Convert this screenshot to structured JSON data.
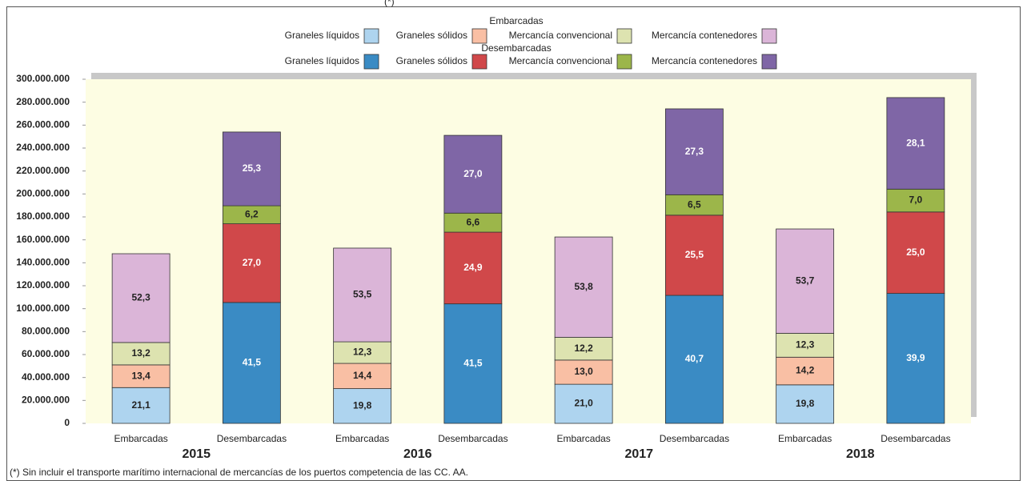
{
  "chart_data": {
    "type": "stacked_bar",
    "title": "(*)",
    "footnote": "(*) Sin incluir el transporte marítimo internacional de mercancías de los puertos competencia de las CC. AA.",
    "legend_titles": [
      "Embarcadas",
      "Desembarcadas"
    ],
    "categories": [
      "Embarcadas",
      "Desembarcadas",
      "Embarcadas",
      "Desembarcadas",
      "Embarcadas",
      "Desembarcadas",
      "Embarcadas",
      "Desembarcadas"
    ],
    "groups": [
      "2015",
      "2016",
      "2017",
      "2018"
    ],
    "series": [
      {
        "name": "Graneles líquidos",
        "color": "#aed4ef",
        "values": [
          31200000,
          null,
          30300000,
          null,
          34100000,
          null,
          33600000,
          null
        ],
        "share_labels": [
          "21,1",
          null,
          "19,8",
          null,
          "21,0",
          null,
          "19,8",
          null
        ]
      },
      {
        "name": "Graneles sólidos",
        "color": "#f9bfa4",
        "values": [
          19800000,
          null,
          22000000,
          null,
          21100000,
          null,
          24100000,
          null
        ],
        "share_labels": [
          "13,4",
          null,
          "14,4",
          null,
          "13,0",
          null,
          "14,2",
          null
        ]
      },
      {
        "name": "Mercancía convencional",
        "color": "#dde3b0",
        "values": [
          19500000,
          null,
          18800000,
          null,
          19800000,
          null,
          20800000,
          null
        ],
        "share_labels": [
          "13,2",
          null,
          "12,3",
          null,
          "12,2",
          null,
          "12,3",
          null
        ]
      },
      {
        "name": "Mercancía contenedores",
        "color": "#dbb5d8",
        "values": [
          77400000,
          null,
          81700000,
          null,
          87500000,
          null,
          91000000,
          null
        ],
        "share_labels": [
          "52,3",
          null,
          "53,5",
          null,
          "53,8",
          null,
          "53,7",
          null
        ]
      },
      {
        "name": "Graneles líquidos",
        "color": "#3a8bc4",
        "values": [
          null,
          105400000,
          null,
          104200000,
          null,
          111600000,
          null,
          113300000
        ],
        "share_labels": [
          null,
          "41,5",
          null,
          "41,5",
          null,
          "40,7",
          null,
          "39,9"
        ]
      },
      {
        "name": "Graneles sólidos",
        "color": "#d0484a",
        "values": [
          null,
          68600000,
          null,
          62500000,
          null,
          69900000,
          null,
          71000000
        ],
        "share_labels": [
          null,
          "27,0",
          null,
          "24,9",
          null,
          "25,5",
          null,
          "25,0"
        ]
      },
      {
        "name": "Mercancía convencional",
        "color": "#9cb64a",
        "values": [
          null,
          15700000,
          null,
          16600000,
          null,
          17800000,
          null,
          19900000
        ],
        "share_labels": [
          null,
          "6,2",
          null,
          "6,6",
          null,
          "6,5",
          null,
          "7,0"
        ]
      },
      {
        "name": "Mercancía contenedores",
        "color": "#7f66a6",
        "values": [
          null,
          64300000,
          null,
          67800000,
          null,
          74900000,
          null,
          79800000
        ],
        "share_labels": [
          null,
          "25,3",
          null,
          "27,0",
          null,
          "27,3",
          null,
          "28,1"
        ]
      }
    ],
    "ylim": [
      0,
      300000000
    ],
    "yticks": [
      0,
      {
        "value": 20000000,
        "label": "20.000.000"
      },
      {
        "value": 40000000,
        "label": "40.000.000"
      },
      {
        "value": 60000000,
        "label": "60.000.000"
      },
      {
        "value": 80000000,
        "label": "80.000.000"
      },
      {
        "value": 100000000,
        "label": "100.000.000"
      },
      {
        "value": 120000000,
        "label": "120.000.000"
      },
      {
        "value": 140000000,
        "label": "140.000.000"
      },
      {
        "value": 160000000,
        "label": "160.000.000"
      },
      {
        "value": 180000000,
        "label": "180.000.000"
      },
      {
        "value": 200000000,
        "label": "200.000.000"
      },
      {
        "value": 220000000,
        "label": "220.000.000"
      },
      {
        "value": 240000000,
        "label": "240.000.000"
      },
      {
        "value": 260000000,
        "label": "260.000.000"
      },
      {
        "value": 280000000,
        "label": "280.000.000"
      },
      {
        "value": 300000000,
        "label": "300.000.000"
      }
    ],
    "grid": false
  }
}
